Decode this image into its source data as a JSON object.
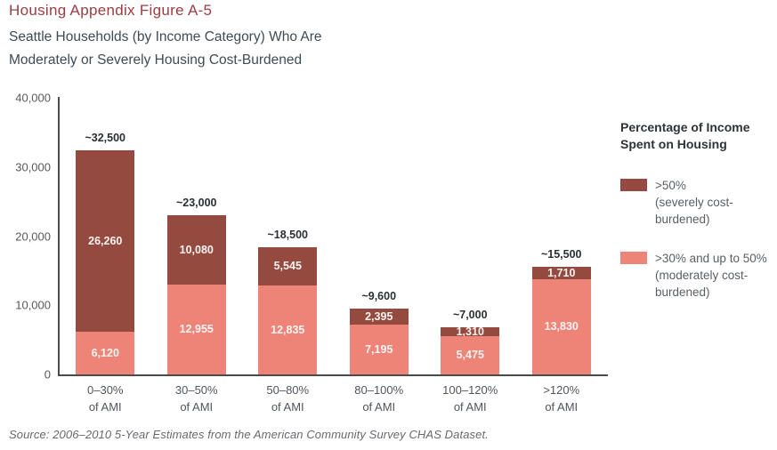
{
  "header": {
    "title": "Housing Appendix Figure A-5",
    "subtitle_line1": "Seattle Households (by Income Category) Who Are",
    "subtitle_line2": "Moderately or Severely Housing Cost-Burdened"
  },
  "colors": {
    "severe": "#954a40",
    "moderate": "#ee8478",
    "title": "#9e3c41",
    "subtitle": "#3f4b55",
    "axis_line": "#4a4a4a",
    "tick_text": "#58595b",
    "category_text": "#4f565c",
    "total_text": "#2b2f33",
    "segment_text": "#fdf4f2",
    "legend_title_text": "#2e3338",
    "legend_item_text": "#5a5f63",
    "source_text": "#66696d"
  },
  "legend": {
    "title_line1": "Percentage of Income",
    "title_line2": "Spent on Housing",
    "items": [
      {
        "color_key": "severe",
        "lines": [
          ">50%",
          "(severely cost-",
          "burdened)"
        ]
      },
      {
        "color_key": "moderate",
        "lines": [
          ">30% and up to 50%",
          "(moderately cost-",
          "burdened)"
        ]
      }
    ]
  },
  "chart_data": {
    "type": "bar",
    "stacked": true,
    "title": "Seattle Households (by Income Category) Who Are Moderately or Severely Housing Cost-Burdened",
    "xlabel": "",
    "ylabel": "",
    "categories": [
      "0–30%",
      "30–50%",
      "50–80%",
      "80–100%",
      "100–120%",
      ">120%"
    ],
    "category_suffix": "of AMI",
    "series": [
      {
        "name": ">50% (severely cost-burdened)",
        "color_key": "severe",
        "values": [
          26260,
          10080,
          5545,
          2395,
          1310,
          1710
        ],
        "labels": [
          "26,260",
          "10,080",
          "5,545",
          "2,395",
          "1,310",
          "1,710"
        ]
      },
      {
        "name": ">30% and up to 50% (moderately cost-burdened)",
        "color_key": "moderate",
        "values": [
          6120,
          12955,
          12835,
          7195,
          5475,
          13830
        ],
        "labels": [
          "6,120",
          "12,955",
          "12,835",
          "7,195",
          "5,475",
          "13,830"
        ]
      }
    ],
    "total_labels": [
      "~32,500",
      "~23,000",
      "~18,500",
      "~9,600",
      "~7,000",
      "~15,500"
    ],
    "ylim": [
      0,
      40000
    ],
    "yticks": [
      0,
      10000,
      20000,
      30000,
      40000
    ],
    "ytick_labels": [
      "0",
      "10,000",
      "20,000",
      "30,000",
      "40,000"
    ],
    "grid": false,
    "legend_position": "right",
    "legend_title": "Percentage of Income Spent on Housing"
  },
  "footer": {
    "source": "Source: 2006–2010 5-Year Estimates from the American Community Survey CHAS Dataset."
  }
}
